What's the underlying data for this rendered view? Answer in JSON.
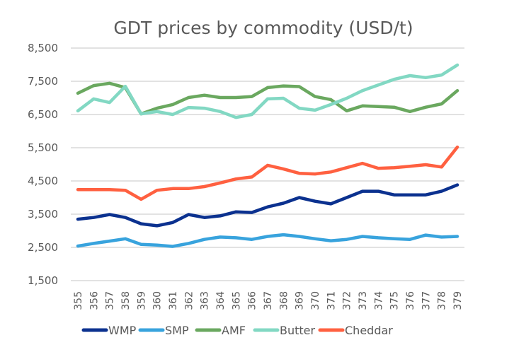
{
  "chart_data": {
    "type": "line",
    "title": "GDT prices by commodity (USD/t)",
    "xlabel": "",
    "ylabel": "",
    "ylim": [
      1500,
      8500
    ],
    "yticks": [
      8500,
      7500,
      6500,
      5500,
      4500,
      3500,
      2500,
      1500
    ],
    "ytick_labels": [
      "8,500",
      "7,500",
      "6,500",
      "5,500",
      "4,500",
      "3,500",
      "2,500",
      "1,500"
    ],
    "grid": true,
    "legend_position": "bottom",
    "x": [
      "355",
      "356",
      "357",
      "358",
      "359",
      "360",
      "361",
      "362",
      "363",
      "364",
      "365",
      "366",
      "367",
      "368",
      "369",
      "370",
      "371",
      "372",
      "373",
      "374",
      "375",
      "376",
      "377",
      "378",
      "379"
    ],
    "series": [
      {
        "name": "WMP",
        "color": "#0b318f",
        "values": [
          3350,
          3400,
          3490,
          3400,
          3210,
          3150,
          3250,
          3490,
          3400,
          3450,
          3570,
          3550,
          3720,
          3830,
          4000,
          3890,
          3810,
          4000,
          4190,
          4190,
          4080,
          4080,
          4080,
          4190,
          4380
        ]
      },
      {
        "name": "SMP",
        "color": "#38a3dd",
        "values": [
          2540,
          2620,
          2690,
          2760,
          2590,
          2570,
          2530,
          2620,
          2740,
          2810,
          2790,
          2740,
          2830,
          2880,
          2830,
          2760,
          2700,
          2740,
          2830,
          2790,
          2760,
          2740,
          2870,
          2810,
          2830
        ]
      },
      {
        "name": "AMF",
        "color": "#6aa85f",
        "values": [
          7140,
          7370,
          7440,
          7310,
          6520,
          6690,
          6800,
          7010,
          7080,
          7010,
          7010,
          7040,
          7310,
          7360,
          7340,
          7040,
          6950,
          6610,
          6760,
          6740,
          6720,
          6590,
          6720,
          6820,
          7220
        ]
      },
      {
        "name": "Butter",
        "color": "#82d8c3",
        "values": [
          6610,
          6970,
          6860,
          7350,
          6520,
          6590,
          6500,
          6710,
          6690,
          6590,
          6410,
          6500,
          6970,
          6990,
          6690,
          6630,
          6800,
          6990,
          7220,
          7390,
          7560,
          7670,
          7610,
          7690,
          7990
        ]
      },
      {
        "name": "Cheddar",
        "color": "#ff6040",
        "values": [
          4240,
          4240,
          4240,
          4220,
          3950,
          4220,
          4270,
          4270,
          4330,
          4440,
          4560,
          4620,
          4970,
          4860,
          4730,
          4710,
          4770,
          4900,
          5030,
          4880,
          4900,
          4940,
          4990,
          4920,
          5520
        ]
      }
    ]
  }
}
